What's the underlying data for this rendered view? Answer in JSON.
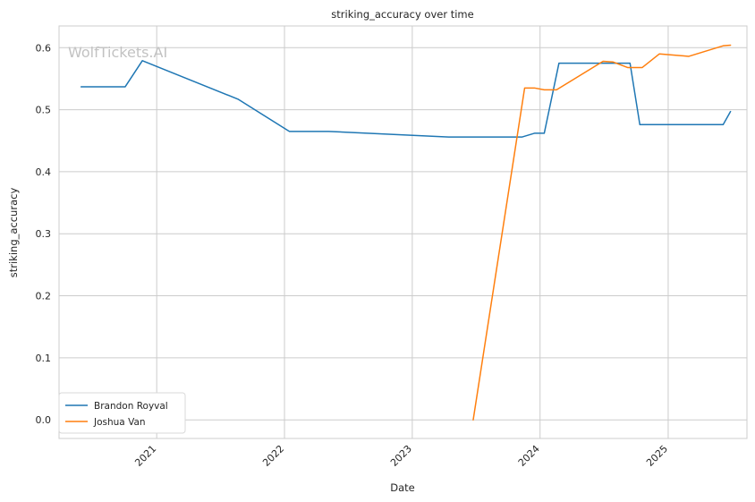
{
  "chart_data": {
    "type": "line",
    "title": "striking_accuracy over time",
    "xlabel": "Date",
    "ylabel": "striking_accuracy",
    "watermark": "WolfTickets.AI",
    "xlim": [
      "2020-03-28",
      "2025-08-14"
    ],
    "ylim": [
      -0.03,
      0.635
    ],
    "x_ticks": [
      {
        "date": "2021-01-01",
        "label": "2021"
      },
      {
        "date": "2022-01-01",
        "label": "2022"
      },
      {
        "date": "2023-01-01",
        "label": "2023"
      },
      {
        "date": "2024-01-01",
        "label": "2024"
      },
      {
        "date": "2025-01-01",
        "label": "2025"
      }
    ],
    "y_ticks": [
      {
        "value": 0.0,
        "label": "0.0"
      },
      {
        "value": 0.1,
        "label": "0.1"
      },
      {
        "value": 0.2,
        "label": "0.2"
      },
      {
        "value": 0.3,
        "label": "0.3"
      },
      {
        "value": 0.4,
        "label": "0.4"
      },
      {
        "value": 0.5,
        "label": "0.5"
      },
      {
        "value": 0.6,
        "label": "0.6"
      }
    ],
    "grid": true,
    "legend_position": "lower-left",
    "series": [
      {
        "name": "Brandon Royval",
        "color": "#1f77b4",
        "points": [
          {
            "x": "2020-05-30",
            "y": 0.537
          },
          {
            "x": "2020-10-03",
            "y": 0.537
          },
          {
            "x": "2020-11-21",
            "y": 0.579
          },
          {
            "x": "2021-08-21",
            "y": 0.517
          },
          {
            "x": "2022-01-15",
            "y": 0.465
          },
          {
            "x": "2022-05-07",
            "y": 0.465
          },
          {
            "x": "2023-04-15",
            "y": 0.456
          },
          {
            "x": "2023-11-11",
            "y": 0.456
          },
          {
            "x": "2023-12-16",
            "y": 0.462
          },
          {
            "x": "2024-01-13",
            "y": 0.462
          },
          {
            "x": "2024-02-24",
            "y": 0.575
          },
          {
            "x": "2024-09-14",
            "y": 0.575
          },
          {
            "x": "2024-10-12",
            "y": 0.476
          },
          {
            "x": "2025-06-07",
            "y": 0.476
          },
          {
            "x": "2025-06-28",
            "y": 0.497
          }
        ]
      },
      {
        "name": "Joshua Van",
        "color": "#ff7f0e",
        "points": [
          {
            "x": "2023-06-24",
            "y": 0.0
          },
          {
            "x": "2023-11-18",
            "y": 0.535
          },
          {
            "x": "2023-12-16",
            "y": 0.535
          },
          {
            "x": "2024-01-13",
            "y": 0.532
          },
          {
            "x": "2024-02-17",
            "y": 0.532
          },
          {
            "x": "2024-06-29",
            "y": 0.578
          },
          {
            "x": "2024-07-27",
            "y": 0.577
          },
          {
            "x": "2024-09-07",
            "y": 0.568
          },
          {
            "x": "2024-10-19",
            "y": 0.568
          },
          {
            "x": "2024-12-07",
            "y": 0.59
          },
          {
            "x": "2025-03-01",
            "y": 0.586
          },
          {
            "x": "2025-06-07",
            "y": 0.603
          },
          {
            "x": "2025-06-28",
            "y": 0.604
          }
        ]
      }
    ]
  }
}
